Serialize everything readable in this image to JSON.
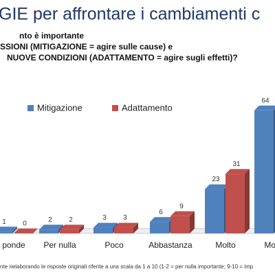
{
  "chart_data": {
    "type": "bar3d",
    "title": "GIE per affrontare i cambiamenti c",
    "subtitle_lines": [
      "nto è importante",
      "SSIONI (MITIGAZIONE = agire sulle cause) e",
      "NUOVE CONDIZIONI (ADATTAMENTO = agire sugli effetti)?"
    ],
    "categories": [
      "ponde",
      "Per nulla",
      "Poco",
      "Abbastanza",
      "Molto",
      "Moltis"
    ],
    "series": [
      {
        "name": "Mitigazione",
        "color": "#4f81bd",
        "values": [
          1,
          2,
          3,
          6,
          23,
          64
        ]
      },
      {
        "name": "Adattamento",
        "color": "#c0504d",
        "values": [
          0,
          2,
          3,
          9,
          31,
          null
        ]
      }
    ],
    "footnote": "nte rielaborando le risposte originali riferite a una scala da 1 a 10 (1-2 = per nulla importante;  9-10 = imp"
  }
}
